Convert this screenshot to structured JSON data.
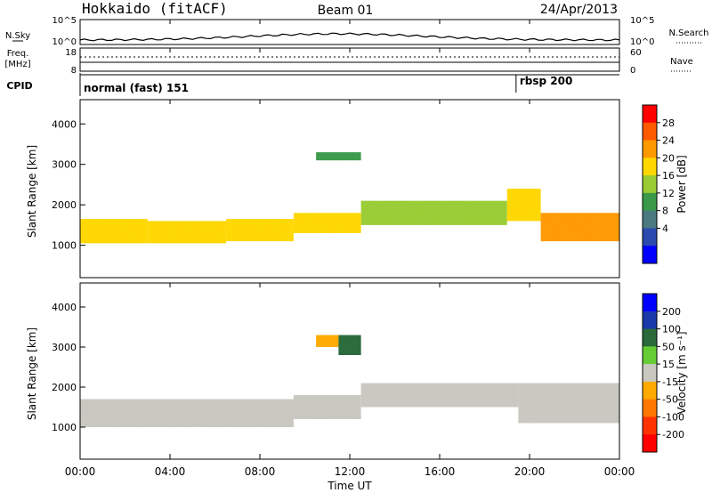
{
  "header": {
    "title_left": "Hokkaido (fitACF)",
    "title_center": "Beam 01",
    "title_right": "24/Apr/2013"
  },
  "panels": {
    "nsky": {
      "label": "N.Sky",
      "right_label": "N.Search",
      "ticks_left": [
        "10^5",
        "10^0"
      ],
      "ticks_right": [
        "10^5",
        "10^0"
      ]
    },
    "freq": {
      "label_line1": "Freq.",
      "label_line2": "[MHz]",
      "ticks_left": [
        "18",
        "8"
      ],
      "right_label": "Nave",
      "ticks_right": [
        "60",
        "0"
      ]
    },
    "cpid": {
      "label": "CPID",
      "modes": [
        {
          "name": "normal (fast) 151",
          "start_hour": 0
        },
        {
          "name": "rbsp 200",
          "start_hour": 19.4
        }
      ]
    }
  },
  "colorbars": {
    "power": {
      "title": "Power [dB]",
      "ticks": [
        "28",
        "24",
        "20",
        "16",
        "12",
        "8",
        "4"
      ],
      "colors": [
        "#ff0000",
        "#ff5a00",
        "#ff9900",
        "#ffd700",
        "#99cc33",
        "#3a9a4a",
        "#4a7a80",
        "#2a4ab0",
        "#0000ff"
      ]
    },
    "velocity": {
      "title": "Velocity [m s⁻¹]",
      "ticks": [
        "200",
        "100",
        "50",
        "15",
        "-15",
        "-50",
        "-100",
        "-200"
      ],
      "colors": [
        "#0000ff",
        "#1a3aaa",
        "#2a6a3a",
        "#66cc33",
        "#c8c8c0",
        "#ffaa00",
        "#ff7700",
        "#ff3300",
        "#ff0000"
      ]
    }
  },
  "axes": {
    "ylabel": "Slant Range [km]",
    "yticks": [
      "4000",
      "3000",
      "2000",
      "1000"
    ],
    "xticks": [
      "00:00",
      "04:00",
      "08:00",
      "12:00",
      "16:00",
      "20:00",
      "00:00"
    ],
    "xlabel": "Time UT"
  },
  "chart_data": [
    {
      "type": "heatmap",
      "title": "Power [dB]",
      "xlabel": "",
      "ylabel": "Slant Range [km]",
      "xlim_hours": [
        0,
        24
      ],
      "ylim_km": [
        200,
        4600
      ],
      "clim": [
        0,
        32
      ],
      "bands": [
        {
          "t0": 0.0,
          "t1": 3.0,
          "r0": 1050,
          "r1": 1650,
          "power": 21
        },
        {
          "t0": 3.0,
          "t1": 6.5,
          "r0": 1050,
          "r1": 1600,
          "power": 20
        },
        {
          "t0": 6.5,
          "t1": 9.5,
          "r0": 1100,
          "r1": 1650,
          "power": 22
        },
        {
          "t0": 9.5,
          "t1": 12.5,
          "r0": 1300,
          "r1": 1800,
          "power": 20
        },
        {
          "t0": 10.5,
          "t1": 12.5,
          "r0": 3100,
          "r1": 3300,
          "power": 14
        },
        {
          "t0": 12.5,
          "t1": 16.0,
          "r0": 1500,
          "r1": 2100,
          "power": 18
        },
        {
          "t0": 16.0,
          "t1": 19.0,
          "r0": 1500,
          "r1": 2100,
          "power": 16
        },
        {
          "t0": 19.0,
          "t1": 20.5,
          "r0": 1600,
          "r1": 2400,
          "power": 22
        },
        {
          "t0": 20.5,
          "t1": 24.0,
          "r0": 1100,
          "r1": 1800,
          "power": 26
        }
      ]
    },
    {
      "type": "heatmap",
      "title": "Velocity [m s⁻¹]",
      "xlabel": "Time UT",
      "ylabel": "Slant Range [km]",
      "xlim_hours": [
        0,
        24
      ],
      "ylim_km": [
        200,
        4600
      ],
      "clim": [
        -250,
        250
      ],
      "bands": [
        {
          "t0": 0.0,
          "t1": 9.5,
          "r0": 1000,
          "r1": 1700,
          "velocity": 0
        },
        {
          "t0": 9.5,
          "t1": 12.5,
          "r0": 1200,
          "r1": 1800,
          "velocity": -30
        },
        {
          "t0": 10.5,
          "t1": 11.5,
          "r0": 3000,
          "r1": 3300,
          "velocity": -40
        },
        {
          "t0": 11.5,
          "t1": 12.5,
          "r0": 2800,
          "r1": 3300,
          "velocity": 150
        },
        {
          "t0": 12.5,
          "t1": 19.5,
          "r0": 1500,
          "r1": 2100,
          "velocity": 20
        },
        {
          "t0": 19.5,
          "t1": 24.0,
          "r0": 1100,
          "r1": 2100,
          "velocity": 0
        }
      ]
    }
  ]
}
